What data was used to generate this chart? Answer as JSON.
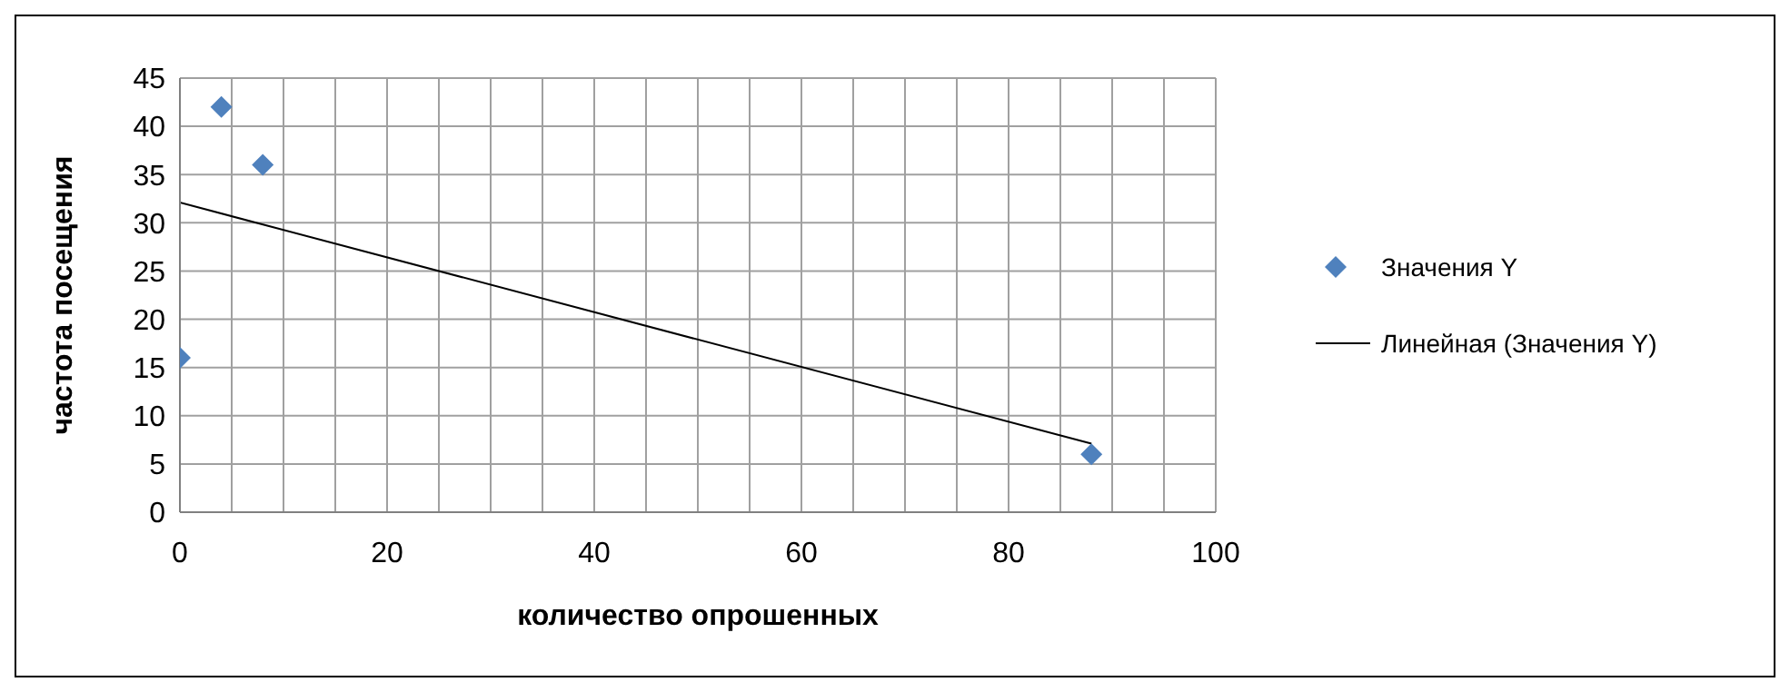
{
  "chart_data": {
    "type": "scatter",
    "xlabel": "количество опрошенных",
    "ylabel": "частота посещения",
    "xlim": [
      0,
      100
    ],
    "xticks": [
      0,
      20,
      40,
      60,
      80,
      100
    ],
    "ylim": [
      0,
      45
    ],
    "yticks": [
      0,
      5,
      10,
      15,
      20,
      25,
      30,
      35,
      40,
      45
    ],
    "grid": true,
    "legend": "right",
    "marker": "diamond",
    "series": [
      {
        "name": "Значения Y",
        "color": "#4f81bd",
        "x": [
          0,
          4,
          8,
          88
        ],
        "values": [
          16,
          42,
          36,
          6
        ]
      },
      {
        "name": "Линейная (Значения Y)",
        "type": "line",
        "color": "#000000",
        "x": [
          0,
          88
        ],
        "values": [
          32.1,
          7.1
        ],
        "marker": "none",
        "line_style": "solid"
      }
    ]
  }
}
